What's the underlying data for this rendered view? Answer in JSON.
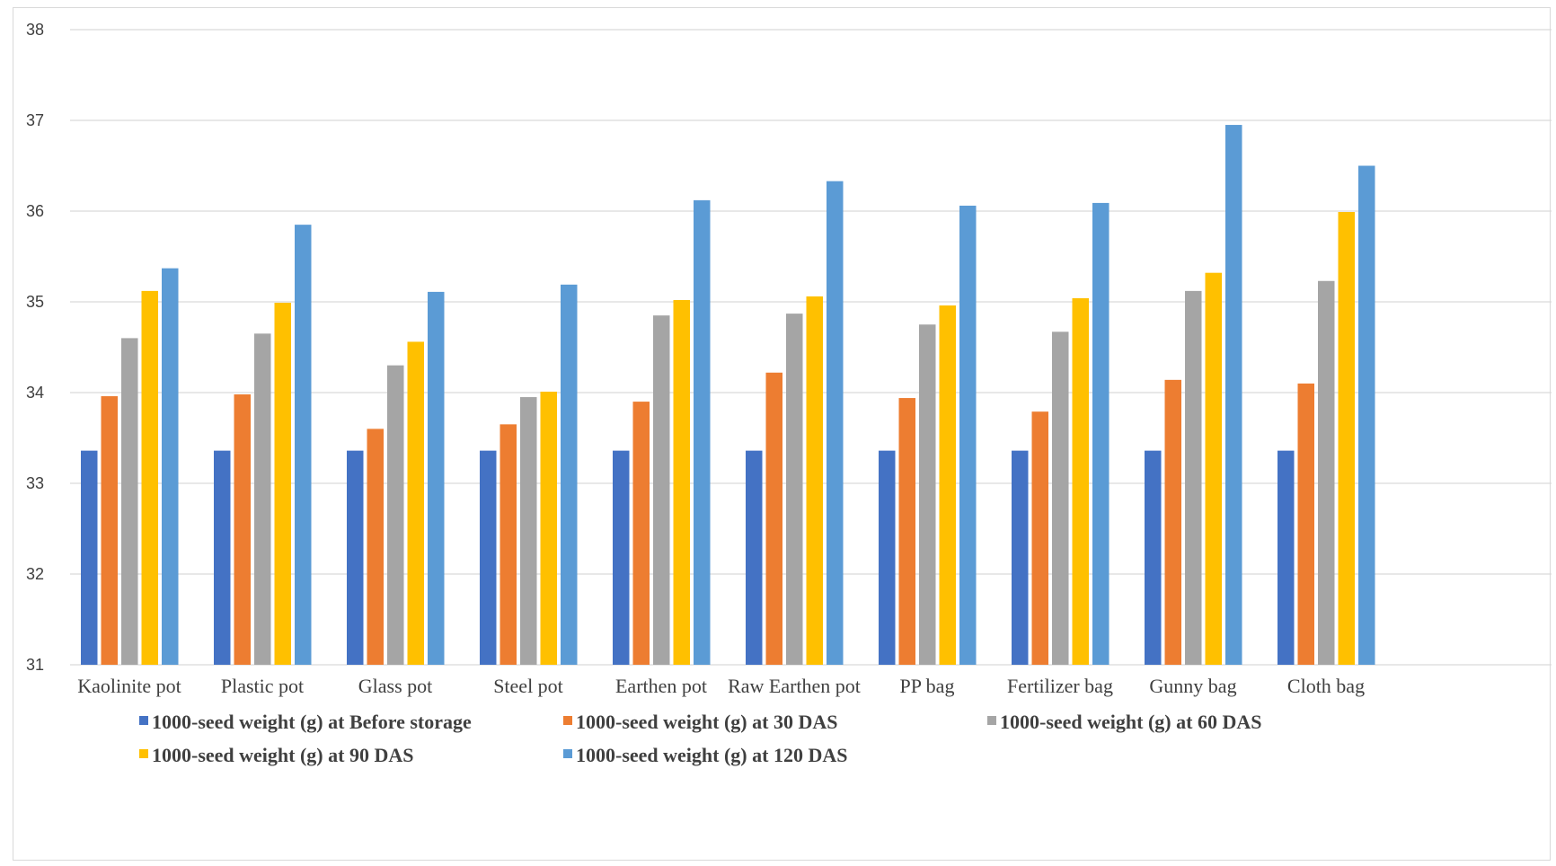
{
  "chart_data": {
    "type": "bar",
    "title": "",
    "xlabel": "",
    "ylabel": "",
    "ylim": [
      31,
      38
    ],
    "yticks": [
      31,
      32,
      33,
      34,
      35,
      36,
      37,
      38
    ],
    "grid": true,
    "legend_position": "bottom",
    "categories": [
      "Kaolinite pot",
      "Plastic pot",
      "Glass pot",
      "Steel pot",
      "Earthen pot",
      "Raw Earthen pot",
      "PP bag",
      "Fertilizer bag",
      "Gunny bag",
      "Cloth bag"
    ],
    "series": [
      {
        "name": "1000-seed weight (g) at Before storage",
        "color": "#4472C4",
        "values": [
          33.36,
          33.36,
          33.36,
          33.36,
          33.36,
          33.36,
          33.36,
          33.36,
          33.36,
          33.36
        ]
      },
      {
        "name": "1000-seed weight (g) at 30 DAS",
        "color": "#ED7D31",
        "values": [
          33.96,
          33.98,
          33.6,
          33.65,
          33.9,
          34.22,
          33.94,
          33.79,
          34.14,
          34.1
        ]
      },
      {
        "name": "1000-seed weight (g) at 60 DAS",
        "color": "#A5A5A5",
        "values": [
          34.6,
          34.65,
          34.3,
          33.95,
          34.85,
          34.87,
          34.75,
          34.67,
          35.12,
          35.23
        ]
      },
      {
        "name": "1000-seed weight (g) at 90 DAS",
        "color": "#FFC000",
        "values": [
          35.12,
          34.99,
          34.56,
          34.01,
          35.02,
          35.06,
          34.96,
          35.04,
          35.32,
          35.99
        ]
      },
      {
        "name": "1000-seed weight (g) at 120 DAS",
        "color": "#5B9BD5",
        "values": [
          35.37,
          35.85,
          35.11,
          35.19,
          36.12,
          36.33,
          36.06,
          36.09,
          36.95,
          36.5
        ]
      }
    ]
  }
}
